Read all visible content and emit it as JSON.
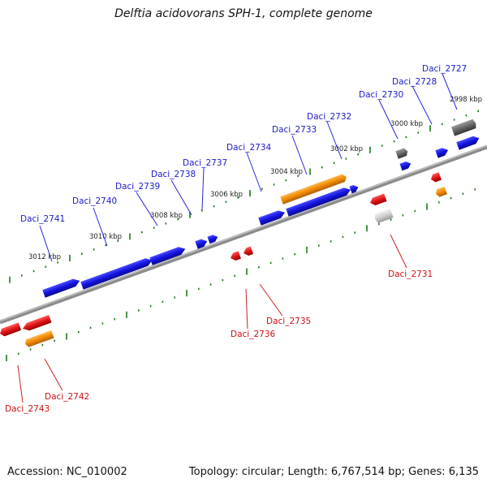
{
  "header": {
    "title": "Delftia acidovorans SPH-1, complete genome"
  },
  "footer": {
    "accession": "Accession: NC_010002",
    "topology": "Topology: circular; Length: 6,767,514 bp; Genes: 6,135"
  },
  "scale": [
    {
      "label": "3012 kbp"
    },
    {
      "label": "3010 kbp"
    },
    {
      "label": "3008 kbp"
    },
    {
      "label": "3006 kbp"
    },
    {
      "label": "3004 kbp"
    },
    {
      "label": "3002 kbp"
    },
    {
      "label": "3000 kbp"
    },
    {
      "label": "2998 kbp"
    }
  ],
  "genes": [
    {
      "label": "Daci_2741",
      "strand": "+",
      "color": "#1a1acc"
    },
    {
      "label": "Daci_2740",
      "strand": "+",
      "color": "#1a1acc"
    },
    {
      "label": "Daci_2739",
      "strand": "+",
      "color": "#1a1acc"
    },
    {
      "label": "Daci_2738",
      "strand": "+",
      "color": "#1a1acc"
    },
    {
      "label": "Daci_2737",
      "strand": "+",
      "color": "#1a1acc"
    },
    {
      "label": "Daci_2734",
      "strand": "+",
      "color": "#1a1acc"
    },
    {
      "label": "Daci_2733",
      "strand": "+",
      "color": "#1a1acc"
    },
    {
      "label": "Daci_2732",
      "strand": "+",
      "color": "#1a1acc"
    },
    {
      "label": "Daci_2730",
      "strand": "+",
      "color": "#1a1acc"
    },
    {
      "label": "Daci_2728",
      "strand": "+",
      "color": "#1a1acc"
    },
    {
      "label": "Daci_2727",
      "strand": "+",
      "color": "#1a1acc"
    },
    {
      "label": "Daci_2743",
      "strand": "-",
      "color": "#cc1111"
    },
    {
      "label": "Daci_2742",
      "strand": "-",
      "color": "#cc1111"
    },
    {
      "label": "Daci_2736",
      "strand": "-",
      "color": "#cc1111"
    },
    {
      "label": "Daci_2735",
      "strand": "-",
      "color": "#cc1111"
    },
    {
      "label": "Daci_2731",
      "strand": "-",
      "color": "#cc1111"
    }
  ],
  "colors": {
    "cds_plus": "#1a1acc",
    "cds_minus": "#e01515",
    "rna_orange": "#f08a00",
    "pseudo_gray": "#666666",
    "backbone": "#7a7a7a",
    "tick_green": "#1a7a1a"
  }
}
